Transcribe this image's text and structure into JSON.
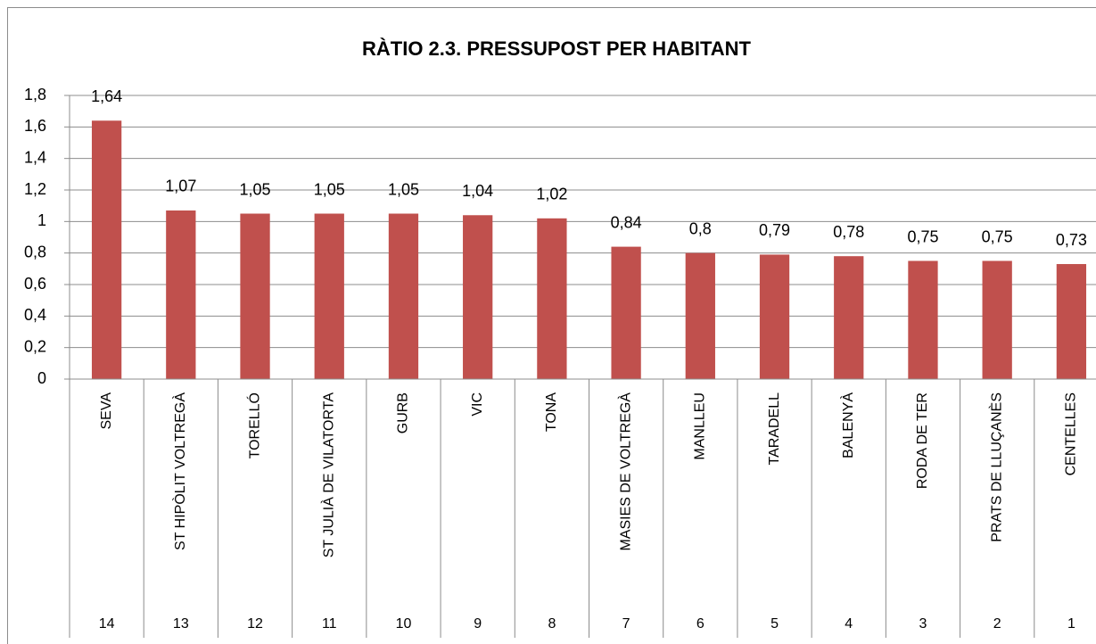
{
  "chart_data": {
    "type": "bar",
    "title": "RÀTIO 2.3.   PRESSUPOST PER HABITANT",
    "categories": [
      "SEVA",
      "ST HIPÒLIT VOLTREGÀ",
      "TORELLÓ",
      "ST JULIÀ DE VILATORTA",
      "GURB",
      "VIC",
      "TONA",
      "MASIES DE VOLTREGÀ",
      "MANLLEU",
      "TARADELL",
      "BALENYÀ",
      "RODA DE TER",
      "PRATS DE LLUÇANÈS",
      "CENTELLES"
    ],
    "ranks": [
      14,
      13,
      12,
      11,
      10,
      9,
      8,
      7,
      6,
      5,
      4,
      3,
      2,
      1
    ],
    "values": [
      1.64,
      1.07,
      1.05,
      1.05,
      1.05,
      1.04,
      1.02,
      0.84,
      0.8,
      0.79,
      0.78,
      0.75,
      0.75,
      0.73
    ],
    "value_labels": [
      "1,64",
      "1,07",
      "1,05",
      "1,05",
      "1,05",
      "1,04",
      "1,02",
      "0,84",
      "0,8",
      "0,79",
      "0,78",
      "0,75",
      "0,75",
      "0,73"
    ],
    "color": "#c0504d",
    "ylim": [
      0,
      1.8
    ],
    "yticks": [
      0,
      {
        "value": 0.2,
        "label": "0,2"
      },
      {
        "value": 0.4,
        "label": "0,4"
      },
      {
        "value": 0.6,
        "label": "0,6"
      },
      {
        "value": 0.8,
        "label": "0,8"
      },
      1,
      {
        "value": 1.2,
        "label": "1,2"
      },
      {
        "value": 1.4,
        "label": "1,4"
      },
      {
        "value": 1.6,
        "label": "1,6"
      },
      {
        "value": 1.8,
        "label": "1,8"
      }
    ],
    "grid": true
  }
}
